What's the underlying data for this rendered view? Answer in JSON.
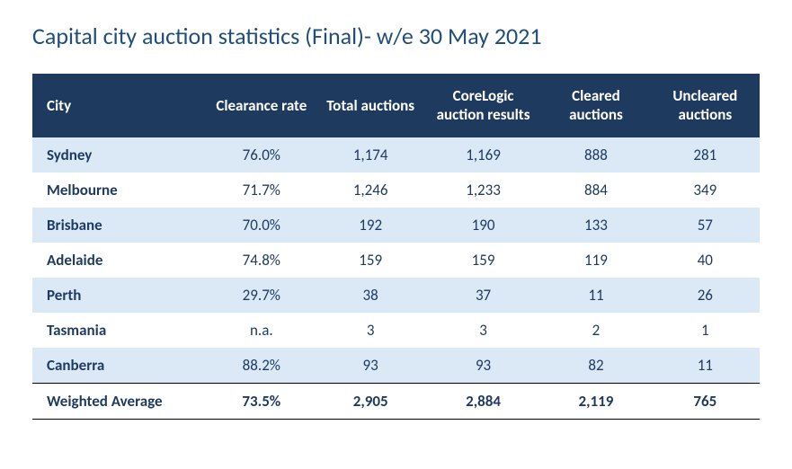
{
  "title": "Capital city auction statistics (Final)- w/e 30 May 2021",
  "table": {
    "type": "table",
    "header_bg": "#1f3a5f",
    "header_fg": "#ffffff",
    "row_alt_bg": "#dbe9f6",
    "row_bg": "#ffffff",
    "text_color": "#1f3a5f",
    "title_color": "#1f4e79",
    "title_fontsize": 26,
    "cell_fontsize": 17,
    "column_widths_pct": [
      24,
      15,
      15,
      16,
      15,
      15
    ],
    "columns": [
      "City",
      "Clearance rate",
      "Total auctions",
      "CoreLogic auction results",
      "Cleared auctions",
      "Uncleared auctions"
    ],
    "rows": [
      {
        "city": "Sydney",
        "clearance": "76.0%",
        "total": "1,174",
        "corelogic": "1,169",
        "cleared": "888",
        "uncleared": "281"
      },
      {
        "city": "Melbourne",
        "clearance": "71.7%",
        "total": "1,246",
        "corelogic": "1,233",
        "cleared": "884",
        "uncleared": "349"
      },
      {
        "city": "Brisbane",
        "clearance": "70.0%",
        "total": "192",
        "corelogic": "190",
        "cleared": "133",
        "uncleared": "57"
      },
      {
        "city": "Adelaide",
        "clearance": "74.8%",
        "total": "159",
        "corelogic": "159",
        "cleared": "119",
        "uncleared": "40"
      },
      {
        "city": "Perth",
        "clearance": "29.7%",
        "total": "38",
        "corelogic": "37",
        "cleared": "11",
        "uncleared": "26"
      },
      {
        "city": "Tasmania",
        "clearance": "n.a.",
        "total": "3",
        "corelogic": "3",
        "cleared": "2",
        "uncleared": "1"
      },
      {
        "city": "Canberra",
        "clearance": "88.2%",
        "total": "93",
        "corelogic": "93",
        "cleared": "82",
        "uncleared": "11"
      }
    ],
    "total": {
      "city": "Weighted Average",
      "clearance": "73.5%",
      "total": "2,905",
      "corelogic": "2,884",
      "cleared": "2,119",
      "uncleared": "765"
    }
  }
}
